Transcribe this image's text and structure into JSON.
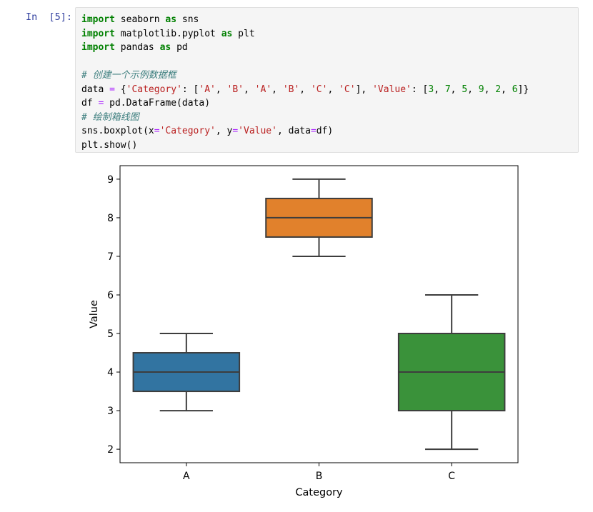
{
  "cell": {
    "prompt": "In  [5]:",
    "lines": [
      [
        {
          "t": "kw",
          "v": "import"
        },
        {
          "t": "plain",
          "v": " seaborn "
        },
        {
          "t": "kw",
          "v": "as"
        },
        {
          "t": "plain",
          "v": " sns"
        }
      ],
      [
        {
          "t": "kw",
          "v": "import"
        },
        {
          "t": "plain",
          "v": " matplotlib.pyplot "
        },
        {
          "t": "kw",
          "v": "as"
        },
        {
          "t": "plain",
          "v": " plt"
        }
      ],
      [
        {
          "t": "kw",
          "v": "import"
        },
        {
          "t": "plain",
          "v": " pandas "
        },
        {
          "t": "kw",
          "v": "as"
        },
        {
          "t": "plain",
          "v": " pd"
        }
      ],
      [],
      [
        {
          "t": "com",
          "v": "# 创建一个示例数据框"
        }
      ],
      [
        {
          "t": "plain",
          "v": "data "
        },
        {
          "t": "op",
          "v": "="
        },
        {
          "t": "plain",
          "v": " {"
        },
        {
          "t": "str",
          "v": "'Category'"
        },
        {
          "t": "plain",
          "v": ": ["
        },
        {
          "t": "str",
          "v": "'A'"
        },
        {
          "t": "plain",
          "v": ", "
        },
        {
          "t": "str",
          "v": "'B'"
        },
        {
          "t": "plain",
          "v": ", "
        },
        {
          "t": "str",
          "v": "'A'"
        },
        {
          "t": "plain",
          "v": ", "
        },
        {
          "t": "str",
          "v": "'B'"
        },
        {
          "t": "plain",
          "v": ", "
        },
        {
          "t": "str",
          "v": "'C'"
        },
        {
          "t": "plain",
          "v": ", "
        },
        {
          "t": "str",
          "v": "'C'"
        },
        {
          "t": "plain",
          "v": "], "
        },
        {
          "t": "str",
          "v": "'Value'"
        },
        {
          "t": "plain",
          "v": ": ["
        },
        {
          "t": "num",
          "v": "3"
        },
        {
          "t": "plain",
          "v": ", "
        },
        {
          "t": "num",
          "v": "7"
        },
        {
          "t": "plain",
          "v": ", "
        },
        {
          "t": "num",
          "v": "5"
        },
        {
          "t": "plain",
          "v": ", "
        },
        {
          "t": "num",
          "v": "9"
        },
        {
          "t": "plain",
          "v": ", "
        },
        {
          "t": "num",
          "v": "2"
        },
        {
          "t": "plain",
          "v": ", "
        },
        {
          "t": "num",
          "v": "6"
        },
        {
          "t": "plain",
          "v": "]}"
        }
      ],
      [
        {
          "t": "plain",
          "v": "df "
        },
        {
          "t": "op",
          "v": "="
        },
        {
          "t": "plain",
          "v": " pd.DataFrame(data)"
        }
      ],
      [
        {
          "t": "com",
          "v": "# 绘制箱线图"
        }
      ],
      [
        {
          "t": "plain",
          "v": "sns.boxplot(x"
        },
        {
          "t": "op",
          "v": "="
        },
        {
          "t": "str",
          "v": "'Category'"
        },
        {
          "t": "plain",
          "v": ", y"
        },
        {
          "t": "op",
          "v": "="
        },
        {
          "t": "str",
          "v": "'Value'"
        },
        {
          "t": "plain",
          "v": ", data"
        },
        {
          "t": "op",
          "v": "="
        },
        {
          "t": "plain",
          "v": "df)"
        }
      ],
      [
        {
          "t": "plain",
          "v": "plt.show()"
        }
      ]
    ]
  },
  "chart_data": {
    "type": "box",
    "categories": [
      "A",
      "B",
      "C"
    ],
    "boxes": [
      {
        "category": "A",
        "min": 3,
        "q1": 3.5,
        "median": 4,
        "q3": 4.5,
        "max": 5,
        "color": "#3274a1"
      },
      {
        "category": "B",
        "min": 7,
        "q1": 7.5,
        "median": 8,
        "q3": 8.5,
        "max": 9,
        "color": "#e1812c"
      },
      {
        "category": "C",
        "min": 2,
        "q1": 3,
        "median": 4,
        "q3": 5,
        "max": 6,
        "color": "#3a923a"
      }
    ],
    "xlabel": "Category",
    "ylabel": "Value",
    "ylim": [
      1.65,
      9.35
    ],
    "yticks": [
      2,
      3,
      4,
      5,
      6,
      7,
      8,
      9
    ],
    "edge_color": "#3d3d3d"
  }
}
